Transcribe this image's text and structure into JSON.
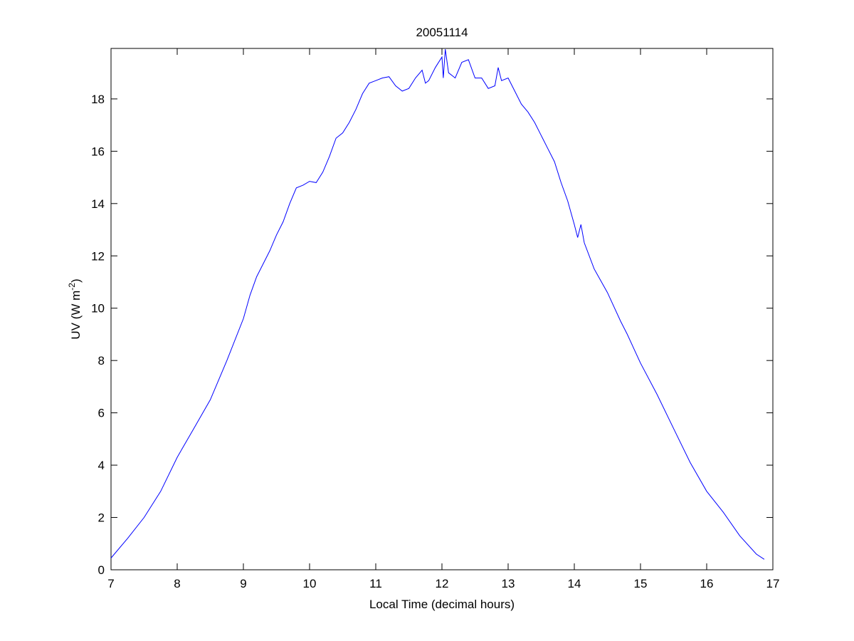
{
  "chart_data": {
    "type": "line",
    "title": "20051114",
    "xlabel": "Local Time (decimal hours)",
    "ylabel": "UV (W m",
    "ylabel_superscript": "-2",
    "ylabel_suffix": ")",
    "xlim": [
      7,
      17
    ],
    "ylim": [
      0,
      19.93
    ],
    "xticks": [
      7,
      8,
      9,
      10,
      11,
      12,
      13,
      14,
      15,
      16,
      17
    ],
    "yticks": [
      0,
      2,
      4,
      6,
      8,
      10,
      12,
      14,
      16,
      18
    ],
    "grid": false,
    "line_color": "#0000ff",
    "series": [
      {
        "x": [
          7.0,
          7.25,
          7.5,
          7.75,
          8.0,
          8.25,
          8.5,
          8.75,
          9.0,
          9.1,
          9.2,
          9.4,
          9.5,
          9.6,
          9.7,
          9.8,
          9.9,
          10.0,
          10.1,
          10.2,
          10.3,
          10.4,
          10.5,
          10.6,
          10.7,
          10.8,
          10.9,
          11.0,
          11.1,
          11.2,
          11.3,
          11.4,
          11.5,
          11.6,
          11.7,
          11.75,
          11.8,
          11.9,
          12.0,
          12.02,
          12.05,
          12.1,
          12.2,
          12.3,
          12.4,
          12.5,
          12.6,
          12.7,
          12.8,
          12.85,
          12.9,
          13.0,
          13.1,
          13.2,
          13.3,
          13.4,
          13.5,
          13.6,
          13.7,
          13.8,
          13.9,
          14.0,
          14.05,
          14.1,
          14.15,
          14.3,
          14.5,
          14.7,
          14.8,
          15.0,
          15.25,
          15.5,
          15.75,
          16.0,
          16.25,
          16.5,
          16.75,
          16.87
        ],
        "y": [
          0.45,
          1.2,
          2.0,
          3.0,
          4.3,
          5.4,
          6.5,
          8.0,
          9.6,
          10.5,
          11.2,
          12.2,
          12.8,
          13.3,
          14.0,
          14.6,
          14.7,
          14.85,
          14.8,
          15.2,
          15.8,
          16.5,
          16.7,
          17.1,
          17.6,
          18.2,
          18.6,
          18.7,
          18.8,
          18.85,
          18.5,
          18.3,
          18.4,
          18.8,
          19.1,
          18.6,
          18.7,
          19.2,
          19.6,
          18.8,
          19.9,
          19.0,
          18.8,
          19.4,
          19.5,
          18.8,
          18.8,
          18.4,
          18.5,
          19.2,
          18.7,
          18.8,
          18.3,
          17.8,
          17.5,
          17.1,
          16.6,
          16.1,
          15.6,
          14.8,
          14.1,
          13.2,
          12.7,
          13.2,
          12.5,
          11.5,
          10.6,
          9.5,
          9.0,
          7.9,
          6.7,
          5.4,
          4.1,
          3.0,
          2.2,
          1.3,
          0.6,
          0.4
        ]
      }
    ]
  }
}
